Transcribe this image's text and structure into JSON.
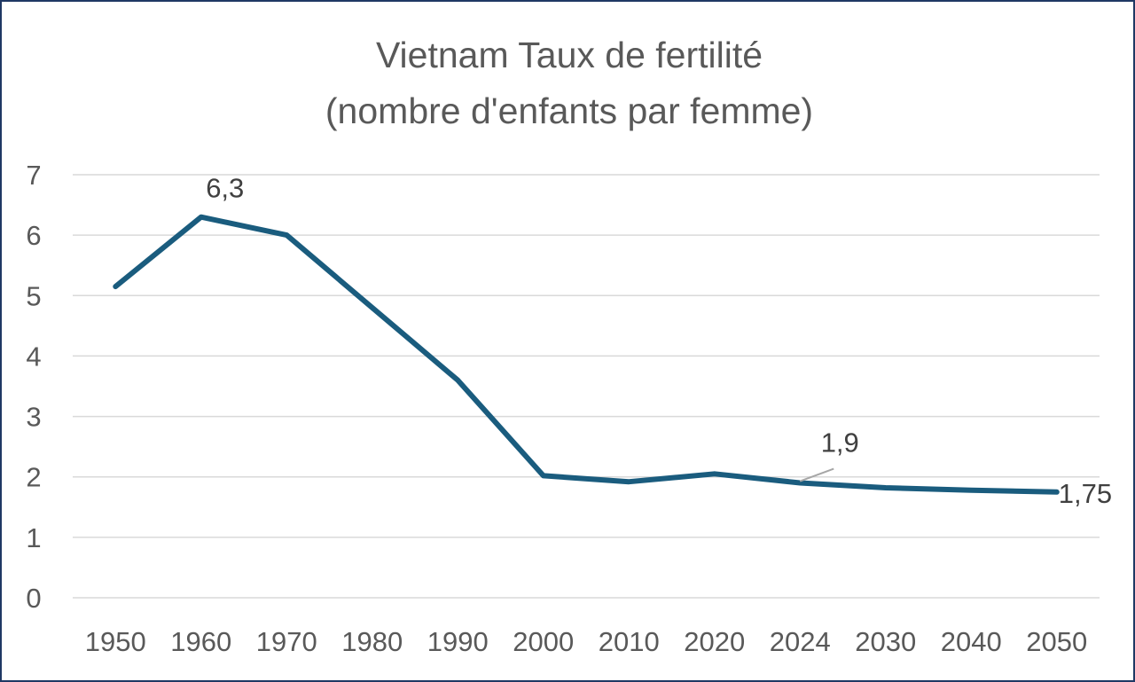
{
  "chart_data": {
    "type": "line",
    "title_line1": "Vietnam Taux de fertilité",
    "title_line2": "(nombre d'enfants par femme)",
    "categories": [
      "1950",
      "1960",
      "1970",
      "1980",
      "1990",
      "2000",
      "2010",
      "2020",
      "2024",
      "2030",
      "2040",
      "2050"
    ],
    "series": [
      {
        "values": [
          5.15,
          6.3,
          6.0,
          4.8,
          3.6,
          2.02,
          1.92,
          2.05,
          1.9,
          1.82,
          1.78,
          1.75
        ]
      }
    ],
    "ylim": [
      0,
      7
    ],
    "yticks": [
      0,
      1,
      2,
      3,
      4,
      5,
      6,
      7
    ],
    "data_labels": [
      {
        "index": 1,
        "text": "6,3"
      },
      {
        "index": 8,
        "text": "1,9"
      },
      {
        "index": 11,
        "text": "1,75"
      }
    ],
    "grid": true,
    "colors": {
      "line": "#1a5c7e",
      "grid": "#d9d9d9",
      "text": "#595959",
      "border": "#1f3864"
    }
  }
}
